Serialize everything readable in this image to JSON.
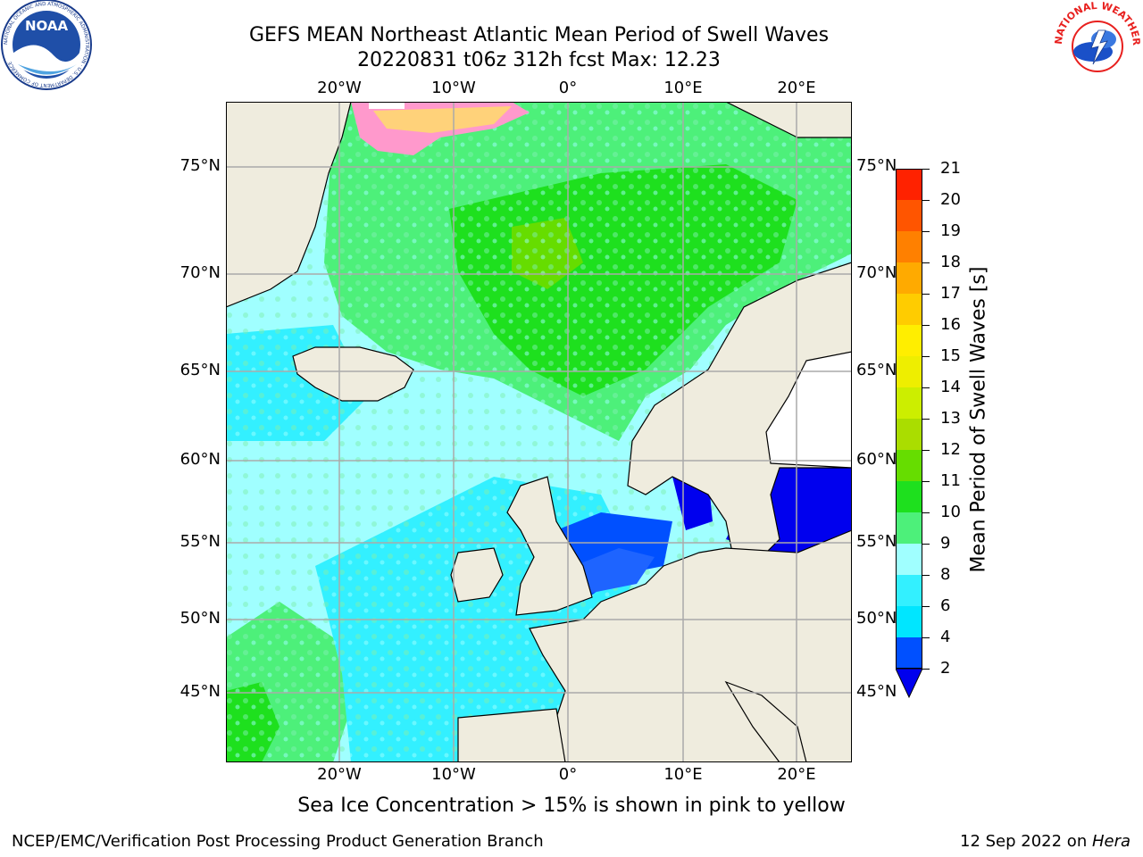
{
  "header": {
    "title_line1": "GEFS MEAN Northeast Atlantic Mean Period of Swell Waves",
    "title_line2": "20220831 t06z 312h fcst   Max: 12.23"
  },
  "logos": {
    "left": {
      "name": "NOARA logo",
      "text": "NOAA",
      "ring_text": "NATIONAL OCEANIC AND ATMOSPHERIC ADMINISTRATION · U.S. DEPARTMENT OF COMMERCE"
    },
    "right": {
      "name": "NWS logo",
      "ring_text": "NATIONAL WEATHER SERVICE"
    }
  },
  "map": {
    "lon_labels": [
      "20°W",
      "10°W",
      "0°",
      "10°E",
      "20°E"
    ],
    "lat_labels": [
      "75°N",
      "70°N",
      "65°N",
      "60°N",
      "55°N",
      "50°N",
      "45°N"
    ],
    "colors": {
      "land": "#efecde",
      "grid": "#aaaaaa",
      "coast": "#000000"
    }
  },
  "colorbar": {
    "label": "Mean Period of Swell Waves [s]",
    "ticks": [
      "2",
      "4",
      "6",
      "8",
      "9",
      "10",
      "11",
      "12",
      "13",
      "14",
      "15",
      "16",
      "17",
      "18",
      "19",
      "20",
      "21"
    ],
    "colors": [
      "#0050ff",
      "#00e6ff",
      "#33f0ff",
      "#a0ffff",
      "#4df07a",
      "#1ee01e",
      "#66dd00",
      "#aadd00",
      "#ccee00",
      "#eeee00",
      "#ffee00",
      "#ffcc00",
      "#ffaa00",
      "#ff8000",
      "#ff5500",
      "#ff2200"
    ],
    "extend_color": "#0000ee"
  },
  "footer": {
    "note": "Sea Ice Concentration > 15% is shown in pink to yellow",
    "credit_left": "NCEP/EMC/Verification Post Processing Product Generation Branch",
    "credit_right_date": "12 Sep 2022 on ",
    "credit_right_host": "Hera"
  }
}
